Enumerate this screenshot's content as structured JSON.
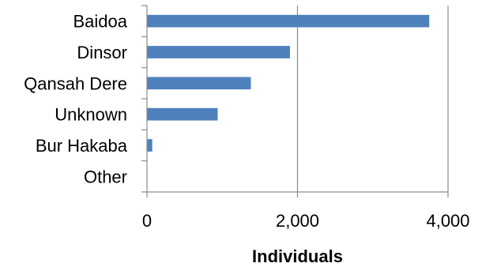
{
  "chart_data": {
    "type": "bar",
    "orientation": "horizontal",
    "categories": [
      "Baidoa",
      "Dinsor",
      "Qansah Dere",
      "Unknown",
      "Bur Hakaba",
      "Other"
    ],
    "values": [
      3750,
      1900,
      1380,
      940,
      70,
      0
    ],
    "xlabel": "Individuals",
    "ylabel": "",
    "xlim": [
      0,
      4000
    ],
    "xticks": [
      0,
      2000,
      4000
    ],
    "xtick_labels": [
      "0",
      "2,000",
      "4,000"
    ],
    "grid": "vertical",
    "legend": "none",
    "bar_color": "#4f81bd",
    "grid_color": "#8c8c8c",
    "axis_color": "#8c8c8c"
  }
}
